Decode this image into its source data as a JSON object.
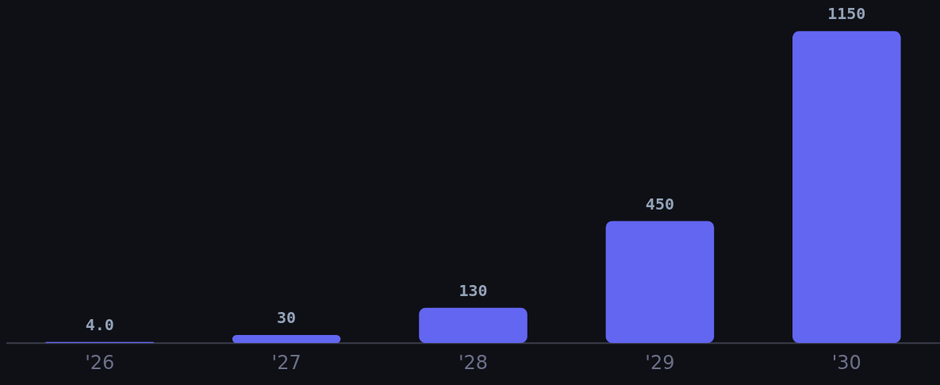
{
  "chart_data": {
    "type": "bar",
    "categories": [
      "'26",
      "'27",
      "'28",
      "'29",
      "'30"
    ],
    "values": [
      4.0,
      30,
      130,
      450,
      1150
    ],
    "value_labels": [
      "4.0",
      "30",
      "130",
      "450",
      "1150"
    ],
    "color": "#6366f1"
  }
}
